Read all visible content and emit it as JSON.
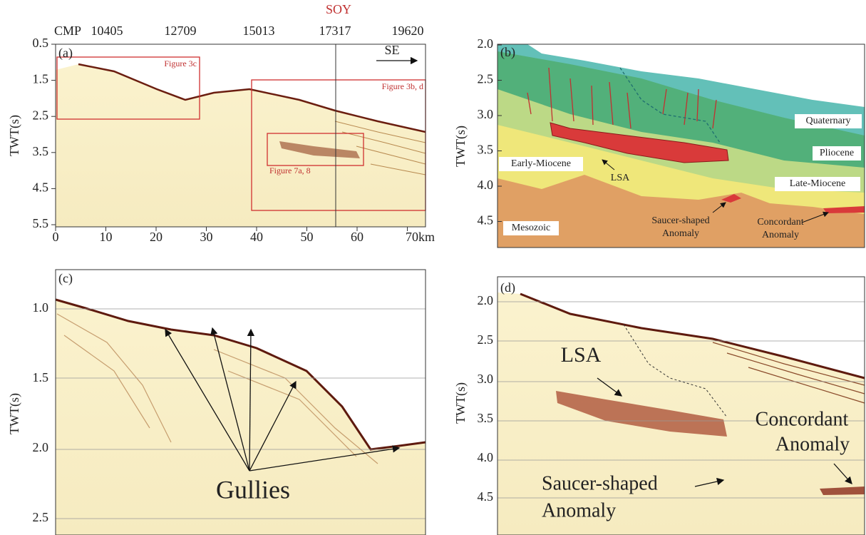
{
  "panels": [
    {
      "label": "(a)",
      "marker": "SOY",
      "top_axis": [
        "CMP",
        "10405",
        "12709",
        "15013",
        "17317",
        "19620"
      ],
      "y_axis_title": "TWT(s)",
      "y_ticks": [
        "0.5",
        "1.5",
        "2.5",
        "3.5",
        "4.5",
        "5.5"
      ],
      "x_ticks": [
        "0",
        "10",
        "20",
        "30",
        "40",
        "50",
        "60",
        "70km"
      ],
      "direction": "SE",
      "boxes": [
        "Figure 3c",
        "Figure 3b, d",
        "Figure 7a, 8"
      ]
    },
    {
      "label": "(b)",
      "y_axis_title": "TWT(s)",
      "y_ticks": [
        "2.0",
        "2.5",
        "3.0",
        "3.5",
        "4.0",
        "4.5"
      ],
      "units": [
        "Quaternary",
        "Pliocene",
        "Late-Miocene",
        "Early-Miocene",
        "Mesozoic"
      ],
      "lsa": "LSA",
      "saucer": [
        "Saucer-shaped",
        "Anomaly"
      ],
      "concordant": [
        "Concordant",
        "Anomaly"
      ]
    },
    {
      "label": "(c)",
      "y_axis_title": "TWT(s)",
      "y_ticks": [
        "1.0",
        "1.5",
        "2.0",
        "2.5"
      ],
      "annotation": "Gullies"
    },
    {
      "label": "(d)",
      "y_axis_title": "TWT(s)",
      "y_ticks": [
        "2.0",
        "2.5",
        "3.0",
        "3.5",
        "4.0",
        "4.5"
      ],
      "lsa": "LSA",
      "concordant": [
        "Concordant",
        "Anomaly"
      ],
      "saucer": [
        "Saucer-shaped",
        "Anomaly"
      ]
    }
  ]
}
